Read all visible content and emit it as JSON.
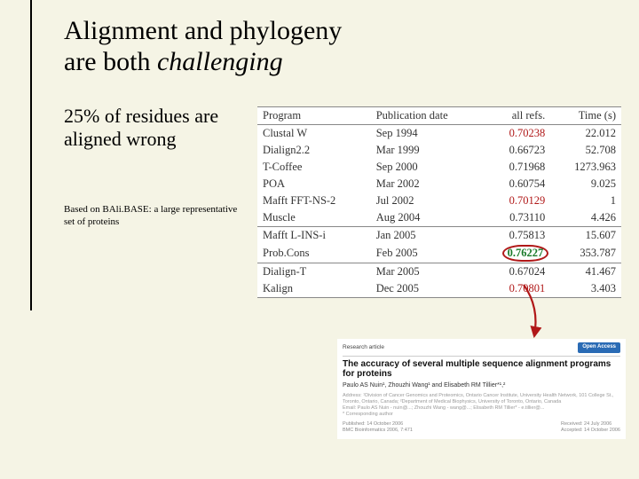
{
  "title_line1": "Alignment and phylogeny",
  "title_line2_a": "are both ",
  "title_line2_b": "challenging",
  "subhead": "25% of residues are aligned wrong",
  "caption": "Based on BAli.BASE: a large representative set of proteins",
  "table": {
    "headers": [
      "Program",
      "Publication date",
      "all refs.",
      "Time (s)"
    ],
    "rows": [
      {
        "p": "Clustal W",
        "d": "Sep 1994",
        "r": "0.70238",
        "t": "22.012",
        "rc": "red"
      },
      {
        "p": "Dialign2.2",
        "d": "Mar 1999",
        "r": "0.66723",
        "t": "52.708"
      },
      {
        "p": "T-Coffee",
        "d": "Sep 2000",
        "r": "0.71968",
        "t": "1273.963"
      },
      {
        "p": "POA",
        "d": "Mar 2002",
        "r": "0.60754",
        "t": "9.025"
      },
      {
        "p": "Mafft FFT-NS-2",
        "d": "Jul 2002",
        "r": "0.70129",
        "t": "1",
        "rc": "red"
      },
      {
        "p": "Muscle",
        "d": "Aug 2004",
        "r": "0.73110",
        "t": "4.426"
      },
      {
        "p": "Mafft L-INS-i",
        "d": "Jan 2005",
        "r": "0.75813",
        "t": "15.607",
        "sep": true
      },
      {
        "p": "Prob.Cons",
        "d": "Feb 2005",
        "r": "0.76227",
        "t": "353.787",
        "rc": "green",
        "circle": true
      },
      {
        "p": "Dialign-T",
        "d": "Mar 2005",
        "r": "0.67024",
        "t": "41.467",
        "sep": true
      },
      {
        "p": "Kalign",
        "d": "Dec 2005",
        "r": "0.70801",
        "t": "3.403",
        "rc": "red"
      }
    ]
  },
  "article": {
    "research_label": "Research article",
    "open_access": "Open Access",
    "title": "The accuracy of several multiple sequence alignment programs for proteins",
    "authors": "Paulo AS Nuin¹, Zhouzhi Wang¹ and Elisabeth RM Tillier*¹,²",
    "address": "Address: ¹Division of Cancer Genomics and Proteomics, Ontario Cancer Institute, University Health Network, 101 College St., Toronto, Ontario, Canada; ²Department of Medical Biophysics, University of Toronto, Ontario, Canada",
    "email": "Email: Paulo AS Nuin - nuin@...; Zhouzhi Wang - wang@...; Elisabeth RM Tillier* - e.tillier@...",
    "corresponding": "* Corresponding author",
    "published_left": "Published: 14 October 2006",
    "published_sub": "BMC Bioinformatics 2006, 7:471",
    "received": "Received: 24 July 2006",
    "accepted": "Accepted: 14 October 2006"
  }
}
